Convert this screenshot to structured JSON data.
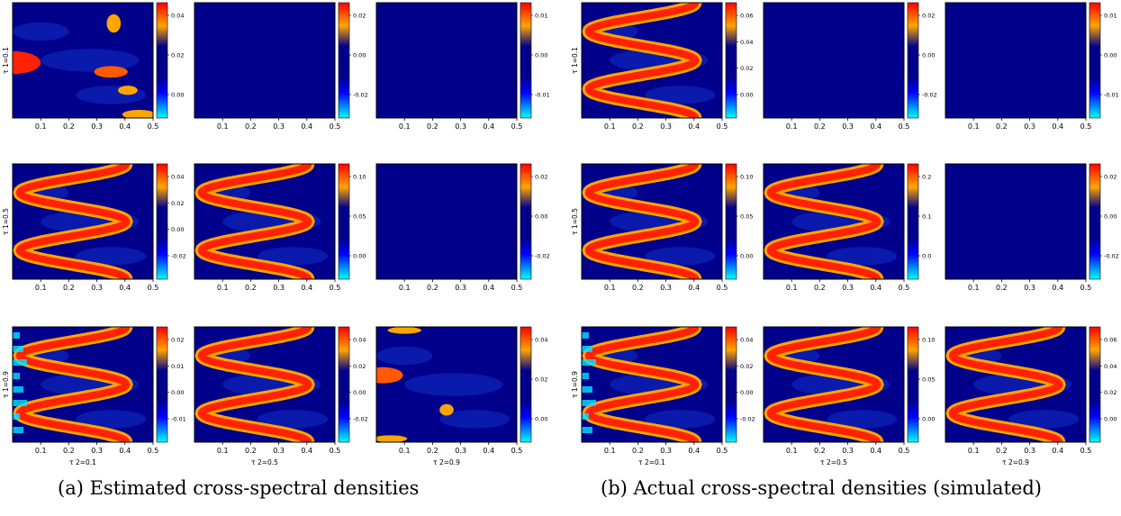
{
  "captions": {
    "a": "(a) Estimated cross-spectral densities",
    "b": "(b) Actual cross-spectral densities (simulated)"
  },
  "colors": {
    "scale": [
      "#00ffff",
      "#0000ff",
      "#00008b",
      "#00008b",
      "#ffa500",
      "#ff0000"
    ],
    "background": "#00008b"
  },
  "chart_data": {
    "type": "heatmap",
    "x_ticks": [
      "0.1",
      "0.2",
      "0.3",
      "0.4",
      "0.5"
    ],
    "x_domain": [
      0,
      0.5
    ],
    "row_labels": [
      "τ 1=0.1",
      "τ 1=0.5",
      "τ 1=0.9"
    ],
    "col_labels": [
      "τ 2=0.1",
      "τ 2=0.5",
      "τ 2=0.9"
    ],
    "panels": [
      {
        "group": "a",
        "row": 0,
        "col": 0,
        "pattern": "patches",
        "colorbar_ticks": [
          "0.04",
          "0.02",
          "0.00"
        ]
      },
      {
        "group": "a",
        "row": 0,
        "col": 1,
        "pattern": "flat",
        "colorbar_ticks": [
          "0.02",
          "0.00",
          "-0.02"
        ]
      },
      {
        "group": "a",
        "row": 0,
        "col": 2,
        "pattern": "flat",
        "colorbar_ticks": [
          "0.01",
          "0.00",
          "-0.01"
        ]
      },
      {
        "group": "a",
        "row": 1,
        "col": 0,
        "pattern": "wave",
        "colorbar_ticks": [
          "0.04",
          "0.02",
          "0.00",
          "-0.02"
        ]
      },
      {
        "group": "a",
        "row": 1,
        "col": 1,
        "pattern": "wave",
        "colorbar_ticks": [
          "0.10",
          "0.05",
          "0.00"
        ]
      },
      {
        "group": "a",
        "row": 1,
        "col": 2,
        "pattern": "flat",
        "colorbar_ticks": [
          "0.02",
          "0.00",
          "-0.02"
        ]
      },
      {
        "group": "a",
        "row": 2,
        "col": 0,
        "pattern": "wave-edge",
        "colorbar_ticks": [
          "0.02",
          "0.01",
          "0.00",
          "-0.01"
        ]
      },
      {
        "group": "a",
        "row": 2,
        "col": 1,
        "pattern": "wave",
        "colorbar_ticks": [
          "0.04",
          "0.02",
          "0.00",
          "-0.02"
        ]
      },
      {
        "group": "a",
        "row": 2,
        "col": 2,
        "pattern": "patches",
        "colorbar_ticks": [
          "0.04",
          "0.02",
          "0.00"
        ]
      },
      {
        "group": "b",
        "row": 0,
        "col": 0,
        "pattern": "wave",
        "colorbar_ticks": [
          "0.06",
          "0.04",
          "0.02",
          "0.00"
        ]
      },
      {
        "group": "b",
        "row": 0,
        "col": 1,
        "pattern": "flat",
        "colorbar_ticks": [
          "0.02",
          "0.00",
          "-0.02"
        ]
      },
      {
        "group": "b",
        "row": 0,
        "col": 2,
        "pattern": "flat",
        "colorbar_ticks": [
          "0.01",
          "0.00",
          "-0.01"
        ]
      },
      {
        "group": "b",
        "row": 1,
        "col": 0,
        "pattern": "wave",
        "colorbar_ticks": [
          "0.10",
          "0.05",
          "0.00"
        ]
      },
      {
        "group": "b",
        "row": 1,
        "col": 1,
        "pattern": "wave",
        "colorbar_ticks": [
          "0.2",
          "0.1",
          "0.0"
        ]
      },
      {
        "group": "b",
        "row": 1,
        "col": 2,
        "pattern": "flat",
        "colorbar_ticks": [
          "0.02",
          "0.00",
          "-0.02"
        ]
      },
      {
        "group": "b",
        "row": 2,
        "col": 0,
        "pattern": "wave-edge",
        "colorbar_ticks": [
          "0.04",
          "0.02",
          "0.00",
          "-0.02"
        ]
      },
      {
        "group": "b",
        "row": 2,
        "col": 1,
        "pattern": "wave",
        "colorbar_ticks": [
          "0.10",
          "0.05",
          "0.00"
        ]
      },
      {
        "group": "b",
        "row": 2,
        "col": 2,
        "pattern": "wave",
        "colorbar_ticks": [
          "0.06",
          "0.04",
          "0.02",
          "0.00"
        ]
      }
    ]
  }
}
